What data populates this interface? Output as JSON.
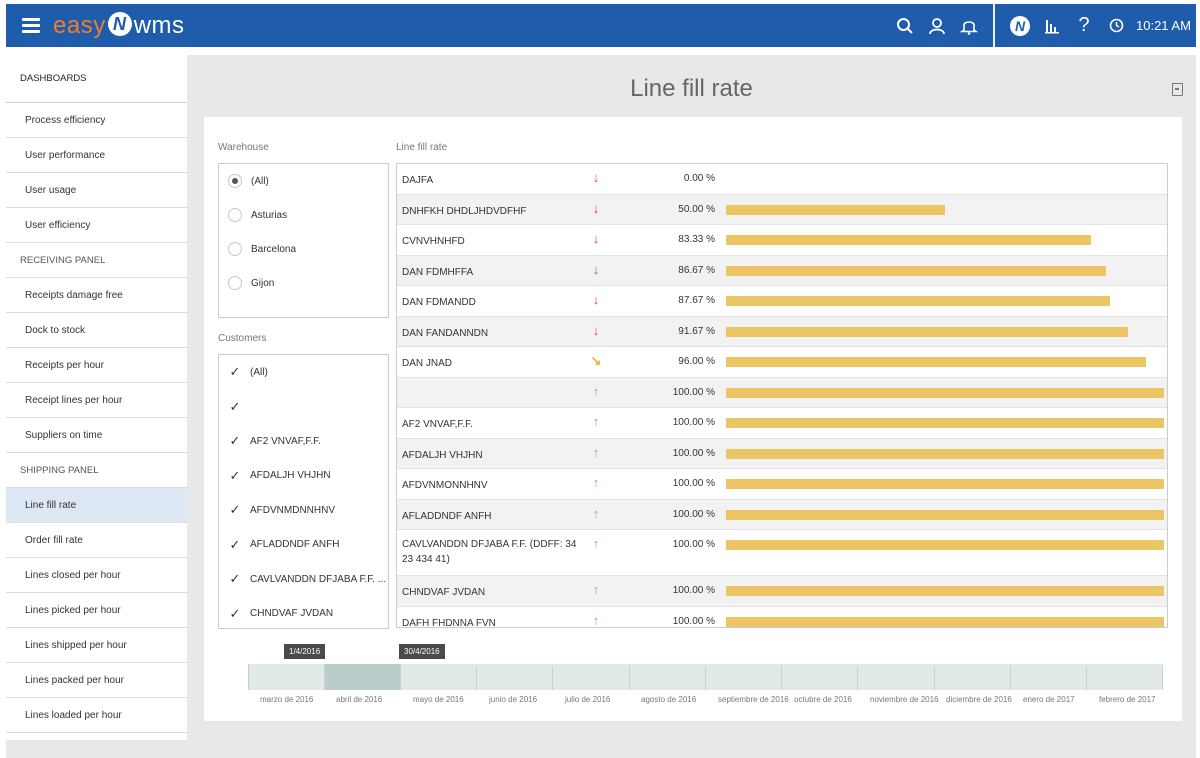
{
  "header": {
    "logo_easy": "easy",
    "logo_badge": "N",
    "logo_wms": "wms",
    "time": "10:21 AM",
    "icons": [
      "search-icon",
      "user-icon",
      "bell-icon",
      "brand-icon",
      "chart-icon",
      "help-icon",
      "clock-icon"
    ],
    "brand_color": "#1f5cac",
    "logo_accent": "#f07c2f"
  },
  "sidebar": {
    "title": "DASHBOARDS",
    "items": [
      {
        "label": "Process efficiency",
        "type": "item"
      },
      {
        "label": "User performance",
        "type": "item"
      },
      {
        "label": "User usage",
        "type": "item"
      },
      {
        "label": "User efficiency",
        "type": "item"
      },
      {
        "label": "RECEIVING PANEL",
        "type": "header"
      },
      {
        "label": "Receipts damage free",
        "type": "item"
      },
      {
        "label": "Dock to stock",
        "type": "item"
      },
      {
        "label": "Receipts per hour",
        "type": "item"
      },
      {
        "label": "Receipt lines per hour",
        "type": "item"
      },
      {
        "label": "Suppliers on time",
        "type": "item"
      },
      {
        "label": "SHIPPING PANEL",
        "type": "header"
      },
      {
        "label": "Line fill rate",
        "type": "item",
        "active": true
      },
      {
        "label": "Order fill rate",
        "type": "item"
      },
      {
        "label": "Lines closed per hour",
        "type": "item"
      },
      {
        "label": "Lines picked per hour",
        "type": "item"
      },
      {
        "label": "Lines shipped per hour",
        "type": "item"
      },
      {
        "label": "Lines packed per hour",
        "type": "item"
      },
      {
        "label": "Lines loaded per hour",
        "type": "item"
      }
    ]
  },
  "main": {
    "title": "Line fill rate",
    "export_icon": "export-pdf-icon"
  },
  "filters": {
    "warehouse_label": "Warehouse",
    "warehouses": [
      {
        "label": "(All)",
        "selected": true
      },
      {
        "label": "Asturias",
        "selected": false
      },
      {
        "label": "Barcelona",
        "selected": false
      },
      {
        "label": "Gijon",
        "selected": false
      }
    ],
    "customers_label": "Customers",
    "customers": [
      {
        "label": "(All)",
        "checked": true
      },
      {
        "label": "",
        "checked": true
      },
      {
        "label": "AF2 VNVAF,F.F.",
        "checked": true
      },
      {
        "label": "AFDALJH VHJHN",
        "checked": true
      },
      {
        "label": "AFDVNMDNNHNV",
        "checked": true
      },
      {
        "label": "AFLADDNDF ANFH",
        "checked": true
      },
      {
        "label": "CAVLVANDDN DFJABA F.F. ...",
        "checked": true
      },
      {
        "label": "CHNDVAF JVDAN",
        "checked": true
      }
    ]
  },
  "chart_data": {
    "type": "bar",
    "title": "Line fill rate",
    "orientation": "horizontal",
    "xlim": [
      0,
      100
    ],
    "bar_color": "#ecc564",
    "rows": [
      {
        "name": "DAJFA",
        "trend": "down",
        "value": 0.0,
        "label": "0.00 %"
      },
      {
        "name": "DNHFKH DHDLJHDVDFHF",
        "trend": "down",
        "value": 50.0,
        "label": "50.00 %"
      },
      {
        "name": "CVNVHNHFD",
        "trend": "down",
        "value": 83.33,
        "label": "83.33 %"
      },
      {
        "name": "DAN FDMHFFA",
        "trend": "down",
        "value": 86.67,
        "label": "86.67 %"
      },
      {
        "name": "DAN FDMANDD",
        "trend": "down",
        "value": 87.67,
        "label": "87.67 %"
      },
      {
        "name": "DAN FANDANNDN",
        "trend": "down",
        "value": 91.67,
        "label": "91.67 %"
      },
      {
        "name": "DAN JNAD",
        "trend": "flat",
        "value": 96.0,
        "label": "96.00 %"
      },
      {
        "name": "",
        "trend": "up",
        "value": 100.0,
        "label": "100.00 %"
      },
      {
        "name": "AF2 VNVAF,F.F.",
        "trend": "up",
        "value": 100.0,
        "label": "100.00 %"
      },
      {
        "name": "AFDALJH VHJHN",
        "trend": "up",
        "value": 100.0,
        "label": "100.00 %"
      },
      {
        "name": "AFDVNMONNHNV",
        "trend": "up",
        "value": 100.0,
        "label": "100.00 %"
      },
      {
        "name": "AFLADDNDF ANFH",
        "trend": "up",
        "value": 100.0,
        "label": "100.00 %"
      },
      {
        "name": "CAVLVANDDN DFJABA F.F. (DDFF: 34 23 434 41)",
        "trend": "up",
        "value": 100.0,
        "label": "100.00 %",
        "tall": true
      },
      {
        "name": "CHNDVAF JVDAN",
        "trend": "up",
        "value": 100.0,
        "label": "100.00 %"
      },
      {
        "name": "DAFH FHDNNA FVN",
        "trend": "up",
        "value": 100.0,
        "label": "100.00 %"
      }
    ],
    "trend_colors": {
      "down": "#e2463a",
      "flat": "#f0b323",
      "up": "#7dc16a"
    }
  },
  "timeline": {
    "start_label": "1/4/2016",
    "end_label": "30/4/2016",
    "months": [
      "marzo de 2016",
      "abril de 2016",
      "mayo de 2016",
      "junio de 2016",
      "julio de 2016",
      "agosto de 2016",
      "septiembre de 2016",
      "octubre de 2016",
      "noviembre de 2016",
      "diciembre de 2016",
      "enero de 2017",
      "febrero de 2017"
    ]
  }
}
